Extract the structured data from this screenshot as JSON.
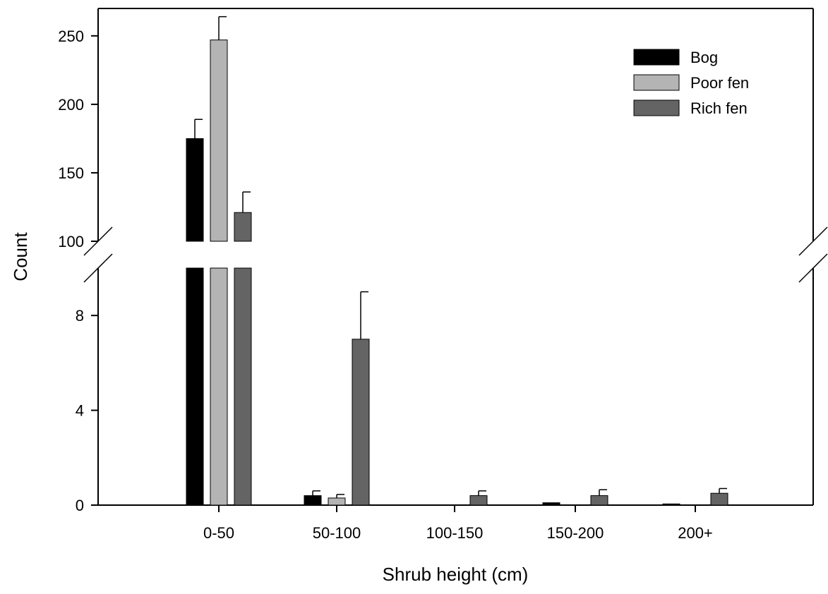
{
  "chart_data": {
    "type": "bar",
    "title": "",
    "xlabel": "Shrub height (cm)",
    "ylabel": "Count",
    "categories": [
      "0-50",
      "50-100",
      "100-150",
      "150-200",
      "200+"
    ],
    "axis_break": {
      "lower_range": [
        0,
        10
      ],
      "upper_range": [
        100,
        270
      ],
      "lower_ticks": [
        0,
        4,
        8
      ],
      "upper_ticks": [
        100,
        150,
        200,
        250
      ]
    },
    "series": [
      {
        "name": "Bog",
        "color": "#000000",
        "values": [
          175,
          0.4,
          0,
          0.1,
          0.05
        ],
        "errors": [
          14,
          0.2,
          0,
          0,
          0
        ]
      },
      {
        "name": "Poor fen",
        "color": "#b4b4b4",
        "values": [
          247,
          0.3,
          0,
          0,
          0
        ],
        "errors": [
          17,
          0.15,
          0,
          0,
          0
        ]
      },
      {
        "name": "Rich fen",
        "color": "#646464",
        "values": [
          121,
          7,
          0.4,
          0.4,
          0.5
        ],
        "errors": [
          15,
          2,
          0.2,
          0.25,
          0.2
        ]
      }
    ],
    "legend_position": "top-right",
    "grid": false
  }
}
